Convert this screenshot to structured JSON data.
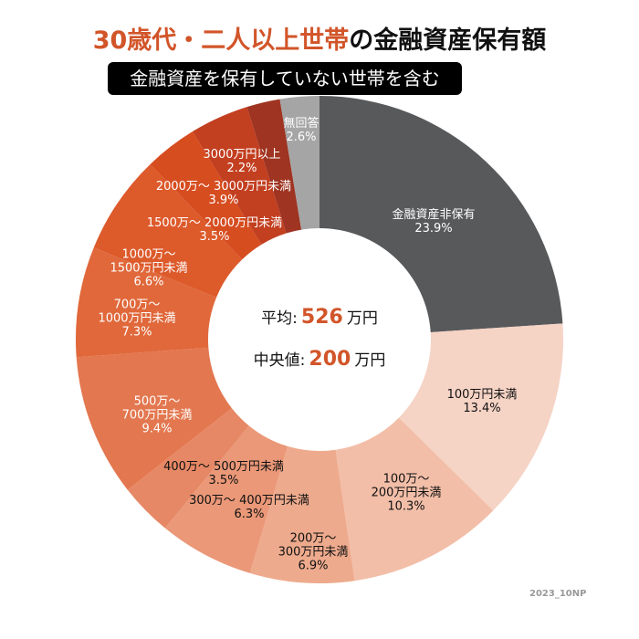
{
  "title": {
    "highlight": "30歳代・二人以上世帯",
    "rest": "の金融資産保有額"
  },
  "subtitle": "金融資産を保有していない世帯を含む",
  "center": {
    "mean_label": "平均:",
    "mean_value": "526",
    "mean_unit": "万円",
    "median_label": "中央値:",
    "median_value": "200",
    "median_unit": "万円"
  },
  "watermark": "2023_10NP",
  "chart_data": {
    "type": "pie",
    "variant": "donut",
    "start": "top, clockwise",
    "slices": [
      {
        "label": "金融資産非保有",
        "value": 23.9,
        "value_text": "23.9%",
        "color": "#58595b",
        "text_color": "#ffffff"
      },
      {
        "label": "100万円未満",
        "value": 13.4,
        "value_text": "13.4%",
        "color": "#f5d3c5",
        "text_color": "#111111"
      },
      {
        "label": "100万～\n200万円未満",
        "value": 10.3,
        "value_text": "10.3%",
        "color": "#f2bea8",
        "text_color": "#111111"
      },
      {
        "label": "200万～\n300万円未満",
        "value": 6.9,
        "value_text": "6.9%",
        "color": "#eeaa8d",
        "text_color": "#111111"
      },
      {
        "label": "300万～ 400万円未満",
        "value": 6.3,
        "value_text": "6.3%",
        "color": "#ea9878",
        "text_color": "#111111"
      },
      {
        "label": "400万～ 500万円未満",
        "value": 3.5,
        "value_text": "3.5%",
        "color": "#e68865",
        "text_color": "#111111"
      },
      {
        "label": "500万～\n700万円未満",
        "value": 9.4,
        "value_text": "9.4%",
        "color": "#e3774f",
        "text_color": "#ffffff"
      },
      {
        "label": "700万～\n1000万円未満",
        "value": 7.3,
        "value_text": "7.3%",
        "color": "#e0683b",
        "text_color": "#ffffff"
      },
      {
        "label": "1000万～\n1500万円未満",
        "value": 6.6,
        "value_text": "6.6%",
        "color": "#dd5a2b",
        "text_color": "#ffffff"
      },
      {
        "label": "1500万～ 2000万円未満",
        "value": 3.5,
        "value_text": "3.5%",
        "color": "#d64d20",
        "text_color": "#ffffff"
      },
      {
        "label": "2000万～ 3000万円未満",
        "value": 3.9,
        "value_text": "3.9%",
        "color": "#c23f20",
        "text_color": "#ffffff"
      },
      {
        "label": "3000万円以上",
        "value": 2.2,
        "value_text": "2.2%",
        "color": "#9e3421",
        "text_color": "#ffffff"
      },
      {
        "label": "無回答",
        "value": 2.6,
        "value_text": "2.6%",
        "color": "#a5a5a5",
        "text_color": "#ffffff"
      }
    ]
  }
}
